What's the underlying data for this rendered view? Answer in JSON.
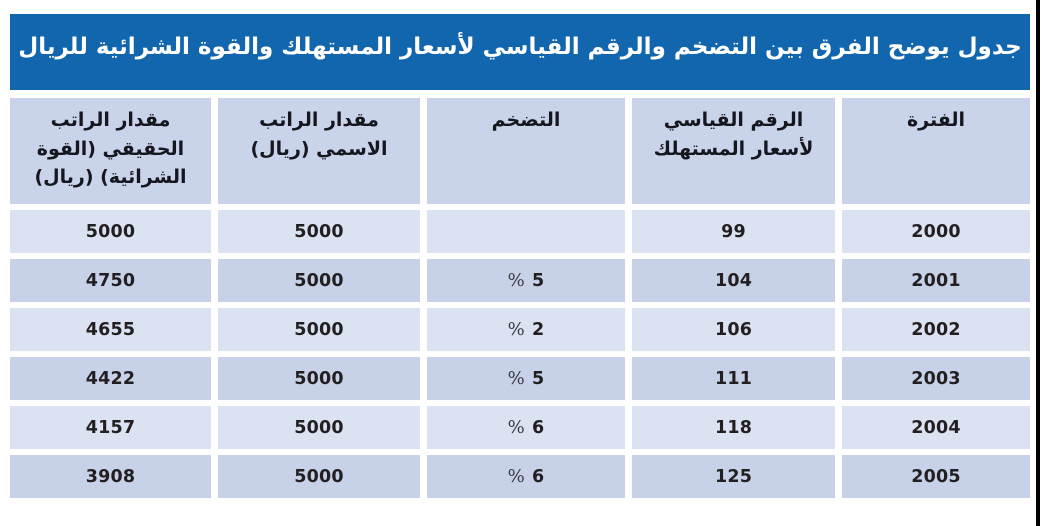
{
  "title_bar": {
    "text": "جدول يوضح الفرق بين التضخم والرقم القياسي لأسعار المستهلك والقوة الشرائية للريال"
  },
  "colors": {
    "title_bar_bg": "#1166ae",
    "title_text": "#ffffff",
    "header_bg": "#c9d3ea",
    "row_light_bg": "#dbe3f3",
    "row_dark_bg": "#c7d2e9",
    "cell_text": "#231f20",
    "page_edge": "#000000"
  },
  "table": {
    "columns": [
      {
        "label": "الفترة"
      },
      {
        "label": "الرقم القياسي لأسعار المستهلك"
      },
      {
        "label": "التضخم"
      },
      {
        "label": "مقدار الراتب الاسمي (ريال)"
      },
      {
        "label": "مقدار الراتب الحقيقي (القوة الشرائية) (ريال)"
      }
    ],
    "rows": [
      {
        "period": "2000",
        "cpi": "99",
        "inflation": {
          "symbol": "",
          "value": ""
        },
        "nominal": "5000",
        "real": "5000"
      },
      {
        "period": "2001",
        "cpi": "104",
        "inflation": {
          "symbol": "%",
          "value": "5"
        },
        "nominal": "5000",
        "real": "4750"
      },
      {
        "period": "2002",
        "cpi": "106",
        "inflation": {
          "symbol": "%",
          "value": "2"
        },
        "nominal": "5000",
        "real": "4655"
      },
      {
        "period": "2003",
        "cpi": "111",
        "inflation": {
          "symbol": "%",
          "value": "5"
        },
        "nominal": "5000",
        "real": "4422"
      },
      {
        "period": "2004",
        "cpi": "118",
        "inflation": {
          "symbol": "%",
          "value": "6"
        },
        "nominal": "5000",
        "real": "4157"
      },
      {
        "period": "2005",
        "cpi": "125",
        "inflation": {
          "symbol": "%",
          "value": "6"
        },
        "nominal": "5000",
        "real": "3908"
      }
    ]
  }
}
